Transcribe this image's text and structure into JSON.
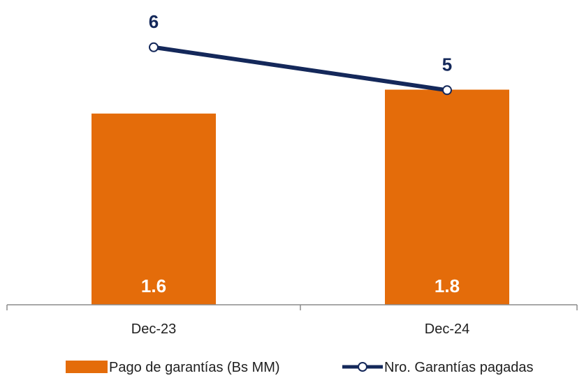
{
  "chart_data": {
    "type": "bar",
    "categories": [
      "Dec-23",
      "Dec-24"
    ],
    "series": [
      {
        "name": "Pago de garantías (Bs MM)",
        "type": "bar",
        "values": [
          1.6,
          1.8
        ],
        "value_labels": [
          "1.6",
          "1.8"
        ],
        "color": "#E46C0A"
      },
      {
        "name": "Nro. Garantías pagadas",
        "type": "line",
        "values": [
          6,
          5
        ],
        "value_labels": [
          "6",
          "5"
        ],
        "color": "#14285A"
      }
    ],
    "bar_ylim": [
      0,
      2.2
    ],
    "line_ylim": [
      0,
      6.5
    ],
    "legend_position": "bottom",
    "grid": false
  }
}
